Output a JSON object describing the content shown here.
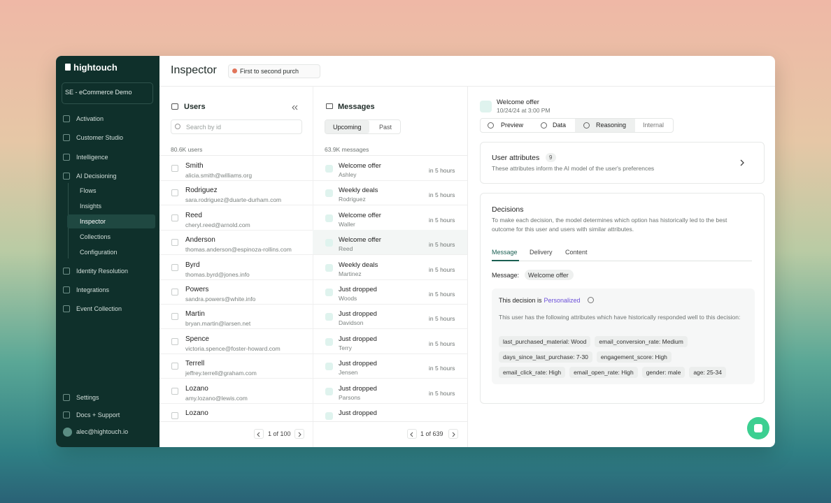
{
  "sidebar": {
    "brand": "hightouch",
    "workspace": "SE - eCommerce Demo",
    "nav": [
      "Activation",
      "Customer Studio",
      "Intelligence",
      "AI Decisioning"
    ],
    "subnav": [
      "Flows",
      "Insights",
      "Inspector",
      "Collections",
      "Configuration"
    ],
    "nav2": [
      "Identity Resolution",
      "Integrations",
      "Event Collection"
    ],
    "footer": [
      "Settings",
      "Docs + Support",
      "alec@hightouch.io"
    ]
  },
  "header": {
    "title": "Inspector",
    "flow": "First to second purch"
  },
  "users": {
    "title": "Users",
    "search": "Search by id",
    "count": "80.6K users",
    "rows": [
      {
        "name": "Smith",
        "email": "alicia.smith@williams.org"
      },
      {
        "name": "Rodriguez",
        "email": "sara.rodriguez@duarte-durham.com"
      },
      {
        "name": "Reed",
        "email": "cheryl.reed@arnold.com"
      },
      {
        "name": "Anderson",
        "email": "thomas.anderson@espinoza-rollins.com"
      },
      {
        "name": "Byrd",
        "email": "thomas.byrd@jones.info"
      },
      {
        "name": "Powers",
        "email": "sandra.powers@white.info"
      },
      {
        "name": "Martin",
        "email": "bryan.martin@larsen.net"
      },
      {
        "name": "Spence",
        "email": "victoria.spence@foster-howard.com"
      },
      {
        "name": "Terrell",
        "email": "jeffrey.terrell@graham.com"
      },
      {
        "name": "Lozano",
        "email": "amy.lozano@lewis.com"
      },
      {
        "name": "Lozano"
      }
    ],
    "pagination": "1 of 100"
  },
  "messages": {
    "title": "Messages",
    "tabs": [
      "Upcoming",
      "Past"
    ],
    "count": "63.9K messages",
    "rows": [
      {
        "title": "Welcome offer",
        "user": "Ashley",
        "time": "in 5 hours"
      },
      {
        "title": "Weekly deals",
        "user": "Rodriguez",
        "time": "in 5 hours"
      },
      {
        "title": "Welcome offer",
        "user": "Waller",
        "time": "in 5 hours"
      },
      {
        "title": "Welcome offer",
        "user": "Reed",
        "time": "in 5 hours"
      },
      {
        "title": "Weekly deals",
        "user": "Martinez",
        "time": "in 5 hours"
      },
      {
        "title": "Just dropped",
        "user": "Woods",
        "time": "in 5 hours"
      },
      {
        "title": "Just dropped",
        "user": "Davidson",
        "time": "in 5 hours"
      },
      {
        "title": "Just dropped",
        "user": "Terry",
        "time": "in 5 hours"
      },
      {
        "title": "Just dropped",
        "user": "Jensen",
        "time": "in 5 hours"
      },
      {
        "title": "Just dropped",
        "user": "Parsons",
        "time": "in 5 hours"
      },
      {
        "title": "Just dropped"
      }
    ],
    "pagination": "1 of 639"
  },
  "detail": {
    "title": "Welcome offer",
    "date": "10/24/24 at 3:00 PM",
    "tabs": [
      "Preview",
      "Data",
      "Reasoning",
      "Internal"
    ],
    "user_attributes": {
      "title": "User attributes",
      "count": "9",
      "description": "These attributes inform the AI model of the user's preferences"
    },
    "decisions": {
      "title": "Decisions",
      "description": "To make each decision, the model determines which option has historically led to the best outcome for this user and users with similar attributes.",
      "tabs": [
        "Message",
        "Delivery",
        "Content"
      ],
      "message_label": "Message:",
      "message_value": "Welcome offer",
      "reason_prefix": "This decision is",
      "reason_type": "Personalized",
      "reason_description": "This user has the following attributes which have historically responded well to this decision:",
      "attributes": [
        [
          "last_purchased_material: Wood",
          "email_conversion_rate: Medium"
        ],
        [
          "days_since_last_purchase: 7-30",
          "engagement_score: High"
        ],
        [
          "email_click_rate: High",
          "email_open_rate: High",
          "gender: male",
          "age: 25-34"
        ]
      ]
    }
  }
}
